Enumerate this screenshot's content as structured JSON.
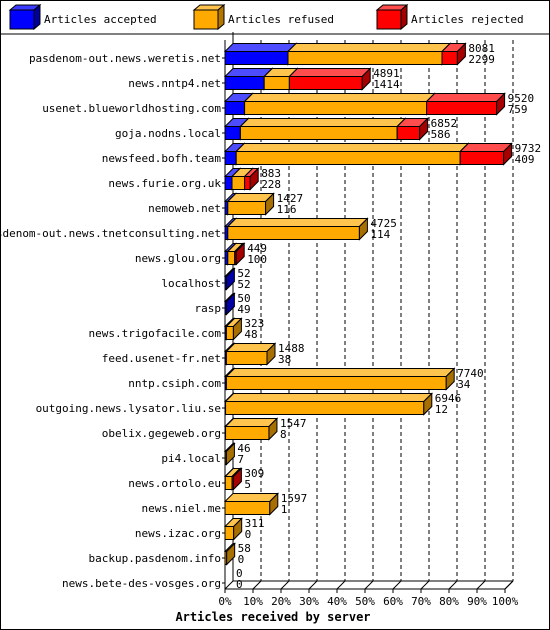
{
  "chart_data": {
    "type": "bar",
    "orientation": "horizontal",
    "stacked": true,
    "xlabel": "Articles received by server",
    "x_ticks": [
      "0%",
      "10%",
      "20%",
      "30%",
      "40%",
      "50%",
      "60%",
      "70%",
      "80%",
      "90%",
      "100%"
    ],
    "legend_position": "top",
    "series": [
      {
        "name": "Articles accepted",
        "color": "#0000ff"
      },
      {
        "name": "Articles refused",
        "color": "#ffaa00"
      },
      {
        "name": "Articles rejected",
        "color": "#ff0000"
      }
    ],
    "rows": [
      {
        "server": "pasdenom-out.news.weretis.net",
        "total_label": "8081",
        "accepted_label": "2299",
        "accepted_pct": 22.5,
        "refused_pct": 55,
        "rejected_pct": 5.5
      },
      {
        "server": "news.nntp4.net",
        "total_label": "4891",
        "accepted_label": "1414",
        "accepted_pct": 14,
        "refused_pct": 9,
        "rejected_pct": 26
      },
      {
        "server": "usenet.blueworldhosting.com",
        "total_label": "9520",
        "accepted_label": "759",
        "accepted_pct": 7,
        "refused_pct": 65,
        "rejected_pct": 25
      },
      {
        "server": "goja.nodns.local",
        "total_label": "6852",
        "accepted_label": "586",
        "accepted_pct": 5.5,
        "refused_pct": 56,
        "rejected_pct": 8
      },
      {
        "server": "newsfeed.bofh.team",
        "total_label": "9732",
        "accepted_label": "409",
        "accepted_pct": 4,
        "refused_pct": 80,
        "rejected_pct": 15.5
      },
      {
        "server": "news.furie.org.uk",
        "total_label": "883",
        "accepted_label": "228",
        "accepted_pct": 2.5,
        "refused_pct": 4.5,
        "rejected_pct": 2
      },
      {
        "server": "nemoweb.net",
        "total_label": "1427",
        "accepted_label": "116",
        "accepted_pct": 1,
        "refused_pct": 13.5,
        "rejected_pct": 0
      },
      {
        "server": "pasdenom-out.news.tnetconsulting.net",
        "total_label": "4725",
        "accepted_label": "114",
        "accepted_pct": 1,
        "refused_pct": 47,
        "rejected_pct": 0
      },
      {
        "server": "news.glou.org",
        "total_label": "449",
        "accepted_label": "100",
        "accepted_pct": 1,
        "refused_pct": 2.5,
        "rejected_pct": 0.5
      },
      {
        "server": "localhost",
        "total_label": "52",
        "accepted_label": "52",
        "accepted_pct": 0.5,
        "refused_pct": 0,
        "rejected_pct": 0
      },
      {
        "server": "rasp",
        "total_label": "50",
        "accepted_label": "49",
        "accepted_pct": 0.5,
        "refused_pct": 0,
        "rejected_pct": 0
      },
      {
        "server": "news.trigofacile.com",
        "total_label": "323",
        "accepted_label": "48",
        "accepted_pct": 0.5,
        "refused_pct": 2.5,
        "rejected_pct": 0
      },
      {
        "server": "feed.usenet-fr.net",
        "total_label": "1488",
        "accepted_label": "38",
        "accepted_pct": 0.5,
        "refused_pct": 14.5,
        "rejected_pct": 0
      },
      {
        "server": "nntp.csiph.com",
        "total_label": "7740",
        "accepted_label": "34",
        "accepted_pct": 0.5,
        "refused_pct": 78.5,
        "rejected_pct": 0
      },
      {
        "server": "outgoing.news.lysator.liu.se",
        "total_label": "6946",
        "accepted_label": "12",
        "accepted_pct": 0.2,
        "refused_pct": 70.8,
        "rejected_pct": 0
      },
      {
        "server": "obelix.gegeweb.org",
        "total_label": "1547",
        "accepted_label": "8",
        "accepted_pct": 0.2,
        "refused_pct": 15.5,
        "rejected_pct": 0
      },
      {
        "server": "pi4.local",
        "total_label": "46",
        "accepted_label": "7",
        "accepted_pct": 0.1,
        "refused_pct": 0.4,
        "rejected_pct": 0
      },
      {
        "server": "news.ortolo.eu",
        "total_label": "309",
        "accepted_label": "5",
        "accepted_pct": 0.1,
        "refused_pct": 2.4,
        "rejected_pct": 0.5
      },
      {
        "server": "news.niel.me",
        "total_label": "1597",
        "accepted_label": "1",
        "accepted_pct": 0,
        "refused_pct": 16,
        "rejected_pct": 0
      },
      {
        "server": "news.izac.org",
        "total_label": "311",
        "accepted_label": "0",
        "accepted_pct": 0,
        "refused_pct": 3.1,
        "rejected_pct": 0
      },
      {
        "server": "backup.pasdenom.info",
        "total_label": "58",
        "accepted_label": "0",
        "accepted_pct": 0,
        "refused_pct": 0.6,
        "rejected_pct": 0
      },
      {
        "server": "news.bete-des-vosges.org",
        "total_label": "0",
        "accepted_label": "0",
        "accepted_pct": 0,
        "refused_pct": 0,
        "rejected_pct": 0
      }
    ]
  }
}
